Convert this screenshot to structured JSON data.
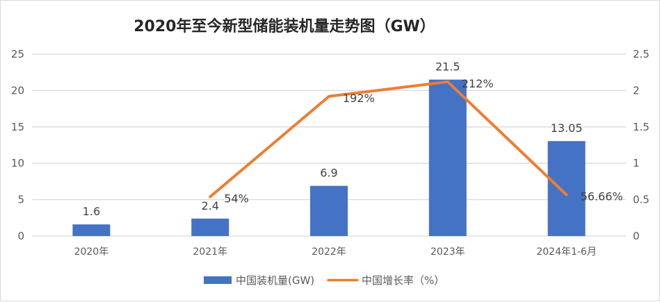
{
  "chart_data": {
    "type": "bar",
    "title": "2020年至今新型储能装机量走势图（GW）",
    "categories": [
      "2020年",
      "2021年",
      "2022年",
      "2023年",
      "2024年1-6月"
    ],
    "series": [
      {
        "name": "中国装机量(GW)",
        "type": "bar",
        "axis": "left",
        "color": "#4472C4",
        "values": [
          1.6,
          2.4,
          6.9,
          21.5,
          13.05
        ],
        "labels": [
          "1.6",
          "2.4",
          "6.9",
          "21.5",
          "13.05"
        ]
      },
      {
        "name": "中国增长率（%）",
        "type": "line",
        "axis": "right",
        "color": "#ED7D31",
        "values": [
          null,
          0.54,
          1.92,
          2.12,
          0.5666
        ],
        "labels": [
          "",
          "54%",
          "192%",
          "212%",
          "56.66%"
        ]
      }
    ],
    "y_left": {
      "ylim": [
        0,
        25
      ],
      "ticks": [
        "0",
        "5",
        "10",
        "15",
        "20",
        "25"
      ]
    },
    "y_right": {
      "ylim": [
        0,
        2.5
      ],
      "ticks": [
        "0",
        "0.5",
        "1",
        "1.5",
        "2",
        "2.5"
      ]
    },
    "xlabel": "",
    "ylabel": "",
    "grid": true,
    "legend": "bottom"
  }
}
